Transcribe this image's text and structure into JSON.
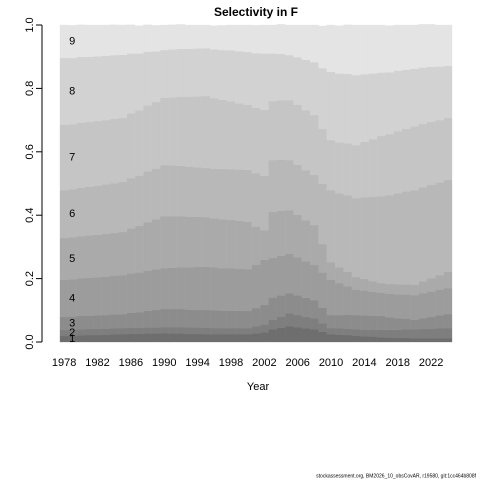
{
  "chart_data": {
    "type": "stacked_step_area",
    "title": "Selectivity in F",
    "xlabel": "Year",
    "footer": "stockassessment.org, BM2026_10_obsCovAR, r19580, git:1cc464b808f",
    "x": [
      1978,
      1979,
      1980,
      1981,
      1982,
      1983,
      1984,
      1985,
      1986,
      1987,
      1988,
      1989,
      1990,
      1991,
      1992,
      1993,
      1994,
      1995,
      1996,
      1997,
      1998,
      1999,
      2000,
      2001,
      2002,
      2003,
      2004,
      2005,
      2006,
      2007,
      2008,
      2009,
      2010,
      2011,
      2012,
      2013,
      2014,
      2015,
      2016,
      2017,
      2018,
      2019,
      2020,
      2021,
      2022,
      2023,
      2024
    ],
    "xlim": [
      1977.5,
      2024.5
    ],
    "xticks": [
      1978,
      1982,
      1986,
      1990,
      1994,
      1998,
      2002,
      2006,
      2010,
      2014,
      2018,
      2022
    ],
    "ylim": [
      0,
      1
    ],
    "yticks": [
      {
        "value": 0,
        "label": "0.0"
      },
      0.2,
      0.4,
      0.6,
      0.8,
      {
        "value": 1,
        "label": "1.0"
      }
    ],
    "series": [
      {
        "name": "1",
        "color": "#6e6e6e",
        "values": [
          0.019,
          0.02,
          0.021,
          0.022,
          0.022,
          0.023,
          0.024,
          0.025,
          0.026,
          0.026,
          0.027,
          0.027,
          0.028,
          0.027,
          0.027,
          0.026,
          0.026,
          0.025,
          0.025,
          0.025,
          0.025,
          0.025,
          0.025,
          0.027,
          0.03,
          0.04,
          0.045,
          0.05,
          0.047,
          0.043,
          0.04,
          0.032,
          0.025,
          0.023,
          0.022,
          0.02,
          0.018,
          0.017,
          0.015,
          0.014,
          0.013,
          0.013,
          0.012,
          0.012,
          0.012,
          0.012,
          0.012
        ]
      },
      {
        "name": "2",
        "color": "#7e7e7e",
        "values": [
          0.019,
          0.019,
          0.019,
          0.019,
          0.019,
          0.019,
          0.019,
          0.019,
          0.019,
          0.019,
          0.019,
          0.019,
          0.019,
          0.02,
          0.02,
          0.02,
          0.02,
          0.02,
          0.019,
          0.019,
          0.019,
          0.019,
          0.019,
          0.022,
          0.025,
          0.03,
          0.035,
          0.04,
          0.038,
          0.036,
          0.035,
          0.027,
          0.019,
          0.02,
          0.02,
          0.02,
          0.021,
          0.022,
          0.023,
          0.024,
          0.025,
          0.027,
          0.028,
          0.029,
          0.03,
          0.031,
          0.032
        ]
      },
      {
        "name": "3",
        "color": "#8c8c8c",
        "values": [
          0.041,
          0.041,
          0.042,
          0.042,
          0.043,
          0.043,
          0.044,
          0.044,
          0.047,
          0.049,
          0.052,
          0.055,
          0.057,
          0.057,
          0.057,
          0.056,
          0.056,
          0.056,
          0.056,
          0.055,
          0.055,
          0.054,
          0.054,
          0.058,
          0.062,
          0.07,
          0.067,
          0.064,
          0.062,
          0.06,
          0.057,
          0.049,
          0.041,
          0.042,
          0.044,
          0.045,
          0.045,
          0.044,
          0.044,
          0.04,
          0.037,
          0.033,
          0.03,
          0.034,
          0.037,
          0.041,
          0.044
        ]
      },
      {
        "name": "4",
        "color": "#9c9c9c",
        "values": [
          0.117,
          0.118,
          0.119,
          0.12,
          0.12,
          0.121,
          0.122,
          0.123,
          0.124,
          0.125,
          0.127,
          0.128,
          0.129,
          0.13,
          0.132,
          0.133,
          0.135,
          0.136,
          0.135,
          0.134,
          0.134,
          0.133,
          0.132,
          0.137,
          0.142,
          0.125,
          0.125,
          0.124,
          0.12,
          0.115,
          0.111,
          0.111,
          0.111,
          0.1,
          0.09,
          0.08,
          0.078,
          0.075,
          0.073,
          0.074,
          0.075,
          0.077,
          0.078,
          0.079,
          0.08,
          0.081,
          0.082
        ]
      },
      {
        "name": "5",
        "color": "#aaaaaa",
        "values": [
          0.132,
          0.132,
          0.133,
          0.133,
          0.134,
          0.135,
          0.135,
          0.136,
          0.142,
          0.147,
          0.153,
          0.158,
          0.164,
          0.163,
          0.161,
          0.16,
          0.158,
          0.157,
          0.155,
          0.154,
          0.152,
          0.151,
          0.149,
          0.12,
          0.094,
          0.145,
          0.142,
          0.138,
          0.134,
          0.13,
          0.126,
          0.09,
          0.056,
          0.05,
          0.045,
          0.04,
          0.037,
          0.034,
          0.031,
          0.031,
          0.032,
          0.032,
          0.032,
          0.037,
          0.042,
          0.046,
          0.051
        ]
      },
      {
        "name": "6",
        "color": "#b8b8b8",
        "values": [
          0.151,
          0.152,
          0.153,
          0.154,
          0.155,
          0.156,
          0.157,
          0.158,
          0.159,
          0.159,
          0.16,
          0.16,
          0.161,
          0.16,
          0.159,
          0.158,
          0.156,
          0.155,
          0.157,
          0.159,
          0.16,
          0.162,
          0.164,
          0.168,
          0.171,
          0.164,
          0.161,
          0.158,
          0.158,
          0.158,
          0.158,
          0.19,
          0.227,
          0.234,
          0.242,
          0.249,
          0.257,
          0.266,
          0.274,
          0.28,
          0.287,
          0.293,
          0.299,
          0.297,
          0.295,
          0.292,
          0.29
        ]
      },
      {
        "name": "7",
        "color": "#c5c5c5",
        "values": [
          0.206,
          0.205,
          0.205,
          0.204,
          0.204,
          0.203,
          0.203,
          0.202,
          0.204,
          0.206,
          0.208,
          0.21,
          0.212,
          0.215,
          0.218,
          0.221,
          0.224,
          0.227,
          0.222,
          0.218,
          0.214,
          0.209,
          0.205,
          0.207,
          0.208,
          0.186,
          0.188,
          0.189,
          0.189,
          0.189,
          0.189,
          0.174,
          0.158,
          0.161,
          0.164,
          0.167,
          0.175,
          0.182,
          0.19,
          0.193,
          0.196,
          0.198,
          0.201,
          0.2,
          0.199,
          0.197,
          0.196
        ]
      },
      {
        "name": "8",
        "color": "#d2d2d2",
        "values": [
          0.211,
          0.209,
          0.208,
          0.206,
          0.204,
          0.203,
          0.201,
          0.199,
          0.189,
          0.179,
          0.17,
          0.16,
          0.151,
          0.151,
          0.151,
          0.151,
          0.151,
          0.151,
          0.154,
          0.157,
          0.161,
          0.164,
          0.167,
          0.172,
          0.178,
          0.15,
          0.146,
          0.142,
          0.15,
          0.159,
          0.167,
          0.191,
          0.215,
          0.217,
          0.219,
          0.221,
          0.214,
          0.207,
          0.2,
          0.195,
          0.191,
          0.186,
          0.182,
          0.178,
          0.173,
          0.169,
          0.164
        ]
      },
      {
        "name": "9",
        "color": "#e4e4e4",
        "values": [
          0.104,
          0.103,
          0.101,
          0.1,
          0.099,
          0.097,
          0.096,
          0.094,
          0.091,
          0.088,
          0.085,
          0.082,
          0.079,
          0.078,
          0.077,
          0.075,
          0.074,
          0.073,
          0.075,
          0.078,
          0.08,
          0.083,
          0.085,
          0.088,
          0.09,
          0.09,
          0.093,
          0.095,
          0.102,
          0.11,
          0.117,
          0.133,
          0.148,
          0.151,
          0.155,
          0.158,
          0.155,
          0.153,
          0.15,
          0.147,
          0.144,
          0.141,
          0.138,
          0.136,
          0.134,
          0.131,
          0.129
        ]
      }
    ]
  }
}
